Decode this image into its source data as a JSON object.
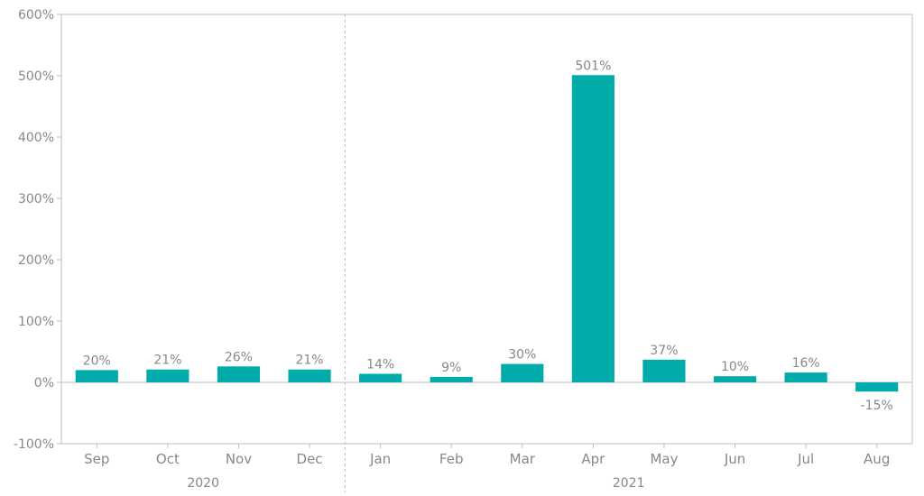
{
  "chart_data": {
    "type": "bar",
    "categories": [
      "Sep",
      "Oct",
      "Nov",
      "Dec",
      "Jan",
      "Feb",
      "Mar",
      "Apr",
      "May",
      "Jun",
      "Jul",
      "Aug"
    ],
    "values": [
      20,
      21,
      26,
      21,
      14,
      9,
      30,
      501,
      37,
      10,
      16,
      -15
    ],
    "data_labels": [
      "20%",
      "21%",
      "26%",
      "21%",
      "14%",
      "9%",
      "30%",
      "501%",
      "37%",
      "10%",
      "16%",
      "-15%"
    ],
    "groups": [
      {
        "label": "2020",
        "count": 4
      },
      {
        "label": "2021",
        "count": 8
      }
    ],
    "ylim": [
      -100,
      600
    ],
    "yticks": [
      -100,
      0,
      100,
      200,
      300,
      400,
      500,
      600
    ],
    "ytick_labels": [
      "-100%",
      "0%",
      "100%",
      "200%",
      "300%",
      "400%",
      "500%",
      "600%"
    ],
    "bar_color": "#00aba9",
    "grid": false,
    "legend": "none"
  }
}
